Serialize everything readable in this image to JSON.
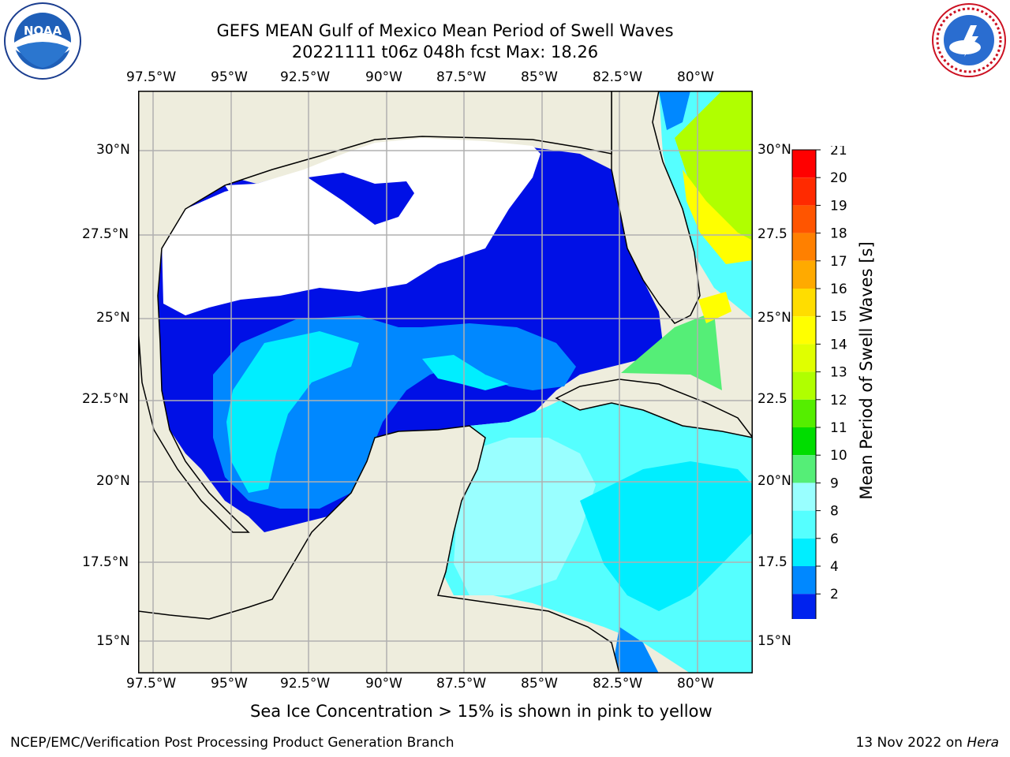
{
  "title_line1": "GEFS MEAN Gulf of Mexico Mean Period of Swell Waves",
  "title_line2": "20221111 t06z 048h fcst   Max: 18.26",
  "lon_labels": [
    "97.5°W",
    "95°W",
    "92.5°W",
    "90°W",
    "87.5°W",
    "85°W",
    "82.5°W",
    "80°W"
  ],
  "lat_labels": [
    "30°N",
    "27.5°N",
    "25°N",
    "22.5°N",
    "20°N",
    "17.5°N",
    "15°N"
  ],
  "lat_labels_right": [
    "30°N",
    "27.5",
    "25°N",
    "22.5",
    "20°N",
    "17.5",
    "15°N"
  ],
  "colorbar": {
    "label": "Mean Period of Swell Waves [s]",
    "ticks": [
      "21",
      "20",
      "19",
      "18",
      "17",
      "16",
      "15",
      "14",
      "13",
      "12",
      "11",
      "10",
      "9",
      "8",
      "6",
      "4",
      "2"
    ],
    "colors": [
      "#ff0000",
      "#ff2a00",
      "#ff5500",
      "#ff8000",
      "#ffaa00",
      "#ffdd00",
      "#ffff00",
      "#e0ff00",
      "#b0ff00",
      "#55ee00",
      "#00dd00",
      "#55ee77",
      "#99ffff",
      "#55ffff",
      "#00eeff",
      "#0088ff",
      "#0022ee"
    ]
  },
  "map": {
    "land_color": "#eeeddd",
    "extent_lon": [
      -98,
      -78.2
    ],
    "extent_lat": [
      14.1,
      31.8
    ]
  },
  "caption": "Sea Ice Concentration > 15% is shown in pink to yellow",
  "footer_left": "NCEP/EMC/Verification Post Processing Product Generation Branch",
  "footer_right_prefix": "13 Nov 2022 on ",
  "footer_right_italic": "Hera",
  "logos": {
    "noaa_text": "NOAA",
    "nws_text": "NATIONAL WEATHER SERVICE"
  }
}
